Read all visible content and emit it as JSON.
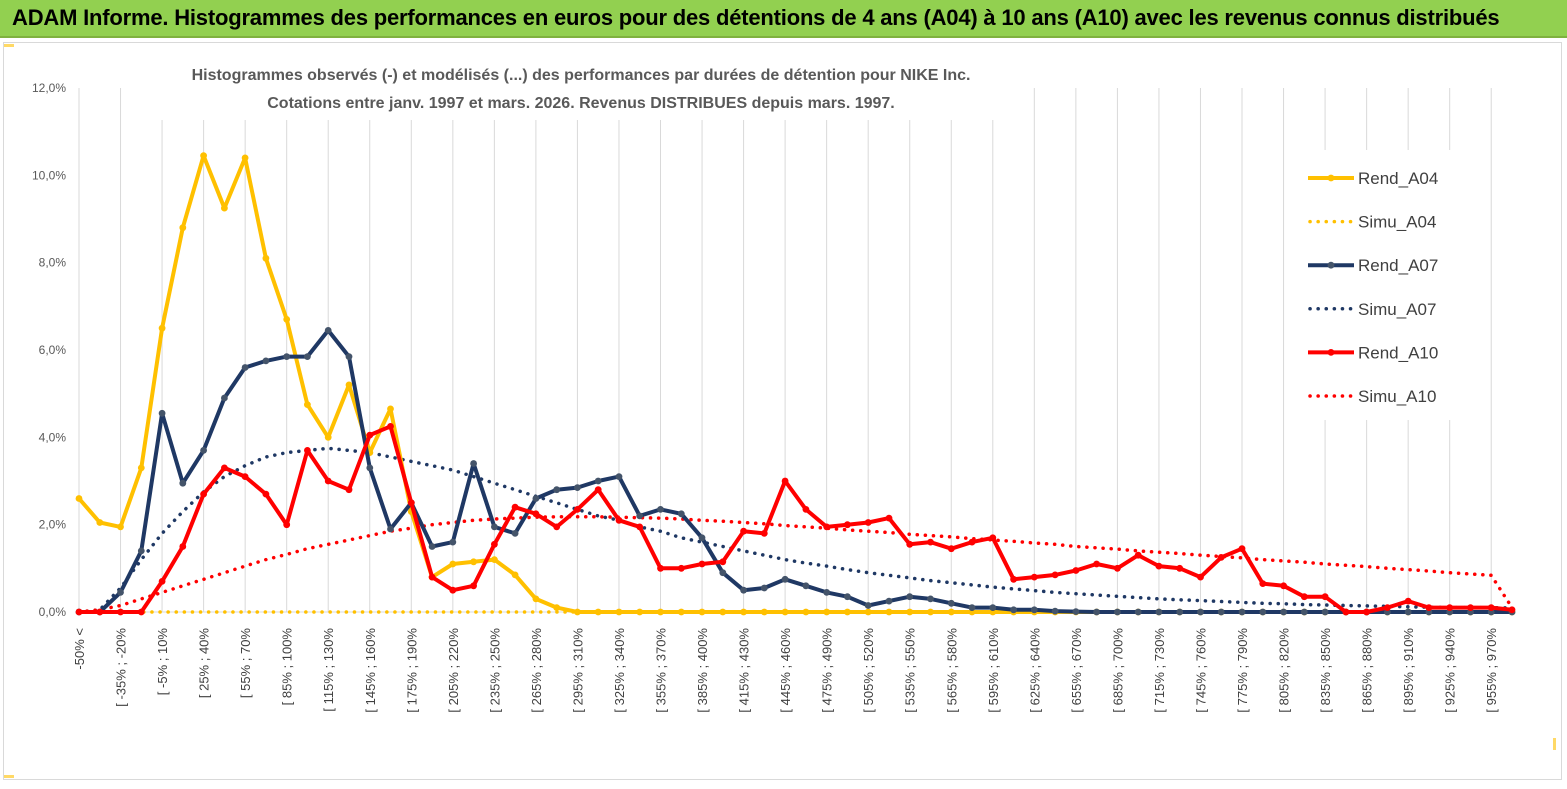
{
  "banner": {
    "title": "ADAM Informe. Histogrammes des performances en euros pour des détentions de 4 ans (A04) à 10 ans (A10) avec les revenus connus distribués"
  },
  "colors": {
    "banner_bg": "#92d050",
    "A04": "#ffc000",
    "A07": "#1f3864",
    "A10": "#ff0000",
    "marker_A07": "#44546a"
  },
  "chart_data": {
    "type": "line",
    "title": "Histogrammes observés (-) et modélisés (...) des performances par durées de détention pour NIKE Inc.",
    "subtitle": "Cotations entre janv. 1997 et mars. 2026. Revenus DISTRIBUES depuis mars. 1997.",
    "ylim": [
      0,
      12
    ],
    "yticks": [
      "0,0%",
      "2,0%",
      "4,0%",
      "6,0%",
      "8,0%",
      "10,0%",
      "12,0%"
    ],
    "grid": "vertical",
    "legend_position": "right",
    "x_labels": [
      "-50% <",
      "[ -35% ; -20%",
      "[ -5% ; 10%",
      "[ 25% ; 40%",
      "[ 55% ; 70%",
      "[ 85% ; 100%",
      "[ 115% ; 130%",
      "[ 145% ; 160%",
      "[ 175% ; 190%",
      "[ 205% ; 220%",
      "[ 235% ; 250%",
      "[ 265% ; 280%",
      "[ 295% ; 310%",
      "[ 325% ; 340%",
      "[ 355% ; 370%",
      "[ 385% ; 400%",
      "[ 415% ; 430%",
      "[ 445% ; 460%",
      "[ 475% ; 490%",
      "[ 505% ; 520%",
      "[ 535% ; 550%",
      "[ 565% ; 580%",
      "[ 595% ; 610%",
      "[ 625% ; 640%",
      "[ 655% ; 670%",
      "[ 685% ; 700%",
      "[ 715% ; 730%",
      "[ 745% ; 760%",
      "[ 775% ; 790%",
      "[ 805% ; 820%",
      "[ 835% ; 850%",
      "[ 865% ; 880%",
      "[ 895% ; 910%",
      "[ 925% ; 940%",
      "[ 955% ; 970%"
    ],
    "series": [
      {
        "name": "Rend_A04",
        "style": "solid",
        "values": [
          2.6,
          2.05,
          1.95,
          3.3,
          6.5,
          8.8,
          10.45,
          9.25,
          10.4,
          8.1,
          6.7,
          4.75,
          4.0,
          5.2,
          3.65,
          4.65,
          2.3,
          0.8,
          1.1,
          1.15,
          1.2,
          0.85,
          0.3,
          0.1,
          0,
          0,
          0,
          0,
          0,
          0,
          0,
          0,
          0,
          0,
          0,
          0,
          0,
          0,
          0,
          0,
          0,
          0,
          0,
          0,
          0,
          0,
          0,
          0,
          0,
          0,
          0,
          0,
          0,
          0,
          0,
          0,
          0,
          0,
          0,
          0,
          0,
          0,
          0,
          0,
          0,
          0,
          0,
          0,
          0,
          0
        ]
      },
      {
        "name": "Simu_A04",
        "style": "dotted",
        "values": [
          0,
          0,
          0,
          0,
          0,
          0,
          0,
          0,
          0,
          0,
          0,
          0,
          0,
          0,
          0,
          0,
          0,
          0,
          0,
          0,
          0,
          0,
          0,
          0,
          0,
          0,
          0,
          0,
          0,
          0,
          0,
          0,
          0,
          0,
          0,
          0,
          0,
          0,
          0,
          0,
          0,
          0,
          0,
          0,
          0,
          0,
          0,
          0,
          0,
          0,
          0,
          0,
          0,
          0,
          0,
          0,
          0,
          0,
          0,
          0,
          0,
          0,
          0,
          0,
          0,
          0,
          0,
          0,
          0,
          0
        ]
      },
      {
        "name": "Rend_A07",
        "style": "solid",
        "values": [
          0,
          0,
          0.45,
          1.4,
          4.55,
          2.95,
          3.7,
          4.9,
          5.6,
          5.75,
          5.85,
          5.85,
          6.45,
          5.85,
          3.3,
          1.9,
          2.5,
          1.5,
          1.6,
          3.4,
          1.95,
          1.8,
          2.6,
          2.8,
          2.85,
          3.0,
          3.1,
          2.2,
          2.35,
          2.25,
          1.7,
          0.9,
          0.5,
          0.55,
          0.75,
          0.6,
          0.45,
          0.35,
          0.15,
          0.25,
          0.35,
          0.3,
          0.2,
          0.1,
          0.1,
          0.05,
          0.05,
          0.02,
          0.01,
          0,
          0,
          0,
          0,
          0,
          0,
          0,
          0,
          0,
          0,
          0,
          0,
          0,
          0,
          0,
          0,
          0,
          0,
          0,
          0,
          0
        ]
      },
      {
        "name": "Simu_A07",
        "style": "dotted",
        "values": [
          0,
          0.05,
          0.55,
          1.2,
          1.8,
          2.3,
          2.75,
          3.1,
          3.35,
          3.55,
          3.65,
          3.7,
          3.75,
          3.7,
          3.65,
          3.55,
          3.45,
          3.35,
          3.25,
          3.1,
          2.95,
          2.8,
          2.65,
          2.5,
          2.35,
          2.2,
          2.1,
          1.95,
          1.85,
          1.7,
          1.6,
          1.5,
          1.4,
          1.3,
          1.2,
          1.12,
          1.05,
          0.97,
          0.9,
          0.84,
          0.78,
          0.72,
          0.67,
          0.62,
          0.57,
          0.53,
          0.49,
          0.45,
          0.42,
          0.39,
          0.36,
          0.33,
          0.3,
          0.28,
          0.26,
          0.24,
          0.22,
          0.2,
          0.19,
          0.17,
          0.16,
          0.15,
          0.14,
          0.13,
          0.12,
          0.11,
          0.1,
          0.1,
          0.1,
          0.09
        ]
      },
      {
        "name": "Rend_A10",
        "style": "solid",
        "values": [
          0,
          0,
          0,
          0,
          0.7,
          1.5,
          2.7,
          3.3,
          3.1,
          2.7,
          2.0,
          3.7,
          3.0,
          2.8,
          4.05,
          4.25,
          2.5,
          0.8,
          0.5,
          0.6,
          1.55,
          2.4,
          2.25,
          1.95,
          2.35,
          2.8,
          2.1,
          1.95,
          1.0,
          1.0,
          1.1,
          1.15,
          1.85,
          1.8,
          3.0,
          2.35,
          1.95,
          2.0,
          2.05,
          2.15,
          1.55,
          1.6,
          1.45,
          1.6,
          1.7,
          0.75,
          0.8,
          0.85,
          0.95,
          1.1,
          1.0,
          1.3,
          1.05,
          1.0,
          0.8,
          1.25,
          1.45,
          0.65,
          0.6,
          0.35,
          0.35,
          0,
          0,
          0.1,
          0.25,
          0.1,
          0.1,
          0.1,
          0.1,
          0.05
        ]
      },
      {
        "name": "Simu_A10",
        "style": "dotted",
        "values": [
          0,
          0.05,
          0.15,
          0.3,
          0.45,
          0.6,
          0.75,
          0.9,
          1.05,
          1.2,
          1.32,
          1.45,
          1.55,
          1.65,
          1.75,
          1.85,
          1.92,
          2.0,
          2.05,
          2.1,
          2.13,
          2.15,
          2.17,
          2.18,
          2.18,
          2.18,
          2.17,
          2.16,
          2.15,
          2.13,
          2.1,
          2.08,
          2.05,
          2.02,
          1.98,
          1.95,
          1.92,
          1.88,
          1.85,
          1.82,
          1.78,
          1.75,
          1.72,
          1.68,
          1.65,
          1.62,
          1.58,
          1.55,
          1.5,
          1.47,
          1.44,
          1.4,
          1.37,
          1.34,
          1.3,
          1.27,
          1.24,
          1.2,
          1.17,
          1.14,
          1.1,
          1.07,
          1.04,
          1.0,
          0.97,
          0.94,
          0.9,
          0.87,
          0.84,
          0.1
        ]
      }
    ]
  }
}
